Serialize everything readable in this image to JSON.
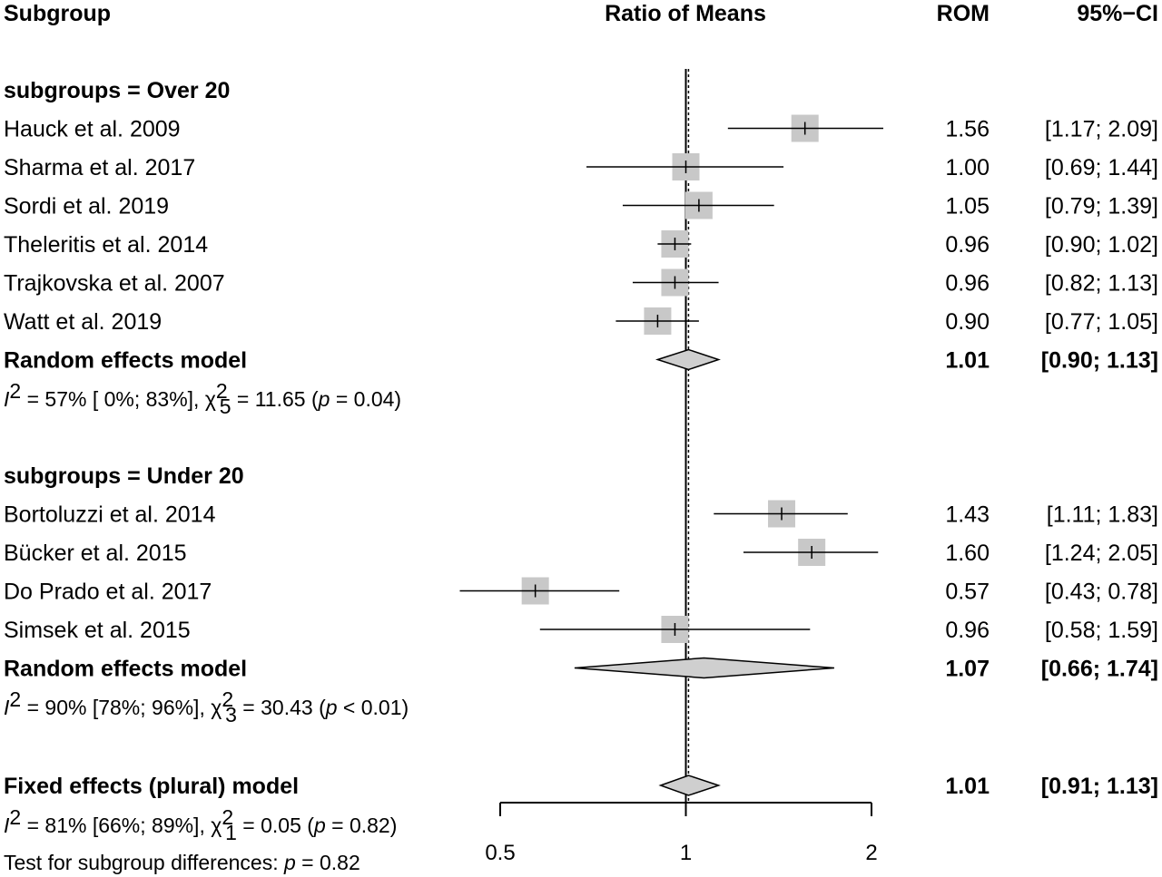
{
  "header": {
    "subgroup": "Subgroup",
    "effect": "Ratio of Means",
    "rom": "ROM",
    "ci": "95%−CI"
  },
  "colors": {
    "square": "#c8c8c8",
    "diamond": "#cfcfcf",
    "line": "#000000"
  },
  "chart_data": {
    "type": "forest",
    "xlabel": "",
    "xscale": "log",
    "xlim": [
      0.5,
      2
    ],
    "ticks": [
      0.5,
      1,
      2
    ],
    "tick_labels": [
      "0.5",
      "1",
      "2"
    ],
    "null_value": 1,
    "overall_reference": 1.01,
    "groups": [
      {
        "title": "subgroups = Over 20",
        "studies": [
          {
            "label": "Hauck et al. 2009",
            "est": 1.56,
            "lo": 1.17,
            "hi": 2.09,
            "est_text": "1.56",
            "ci_text": "[1.17;  2.09]"
          },
          {
            "label": "Sharma et al. 2017",
            "est": 1.0,
            "lo": 0.69,
            "hi": 1.44,
            "est_text": "1.00",
            "ci_text": "[0.69;  1.44]"
          },
          {
            "label": "Sordi et al. 2019",
            "est": 1.05,
            "lo": 0.79,
            "hi": 1.39,
            "est_text": "1.05",
            "ci_text": "[0.79;  1.39]"
          },
          {
            "label": "Theleritis et al. 2014",
            "est": 0.96,
            "lo": 0.9,
            "hi": 1.02,
            "est_text": "0.96",
            "ci_text": "[0.90;  1.02]"
          },
          {
            "label": "Trajkovska et al. 2007",
            "est": 0.96,
            "lo": 0.82,
            "hi": 1.13,
            "est_text": "0.96",
            "ci_text": "[0.82;  1.13]"
          },
          {
            "label": "Watt et al. 2019",
            "est": 0.9,
            "lo": 0.77,
            "hi": 1.05,
            "est_text": "0.90",
            "ci_text": "[0.77;  1.05]"
          }
        ],
        "summary": {
          "label": "Random effects model",
          "est": 1.01,
          "lo": 0.9,
          "hi": 1.13,
          "est_text": "1.01",
          "ci_text": "[0.90;  1.13]"
        },
        "het": {
          "i2": "57%",
          "i2_ci": "[ 0%; 83%]",
          "df": "5",
          "chi2": "11.65",
          "p_op": "=",
          "p": "0.04"
        }
      },
      {
        "title": "subgroups = Under 20",
        "studies": [
          {
            "label": "Bortoluzzi et al. 2014",
            "est": 1.43,
            "lo": 1.11,
            "hi": 1.83,
            "est_text": "1.43",
            "ci_text": "[1.11;  1.83]"
          },
          {
            "label": "Bücker et al. 2015",
            "est": 1.6,
            "lo": 1.24,
            "hi": 2.05,
            "est_text": "1.60",
            "ci_text": "[1.24;  2.05]"
          },
          {
            "label": "Do Prado et al. 2017",
            "est": 0.57,
            "lo": 0.43,
            "hi": 0.78,
            "est_text": "0.57",
            "ci_text": "[0.43;  0.78]"
          },
          {
            "label": "Simsek et al. 2015",
            "est": 0.96,
            "lo": 0.58,
            "hi": 1.59,
            "est_text": "0.96",
            "ci_text": "[0.58;  1.59]"
          }
        ],
        "summary": {
          "label": "Random effects model",
          "est": 1.07,
          "lo": 0.66,
          "hi": 1.74,
          "est_text": "1.07",
          "ci_text": "[0.66;  1.74]"
        },
        "het": {
          "i2": "90%",
          "i2_ci": "[78%; 96%]",
          "df": "3",
          "chi2": "30.43",
          "p_op": "<",
          "p": "0.01"
        }
      }
    ],
    "overall": {
      "label": "Fixed effects (plural) model",
      "est": 1.01,
      "lo": 0.91,
      "hi": 1.13,
      "est_text": "1.01",
      "ci_text": "[0.91;  1.13]",
      "het": {
        "i2": "81%",
        "i2_ci": "[66%; 89%]",
        "df": "1",
        "chi2": "0.05",
        "p_op": "=",
        "p": "0.82"
      }
    },
    "subgroup_test": {
      "label": "Test for subgroup differences:",
      "p_op": "=",
      "p": "0.82"
    }
  }
}
